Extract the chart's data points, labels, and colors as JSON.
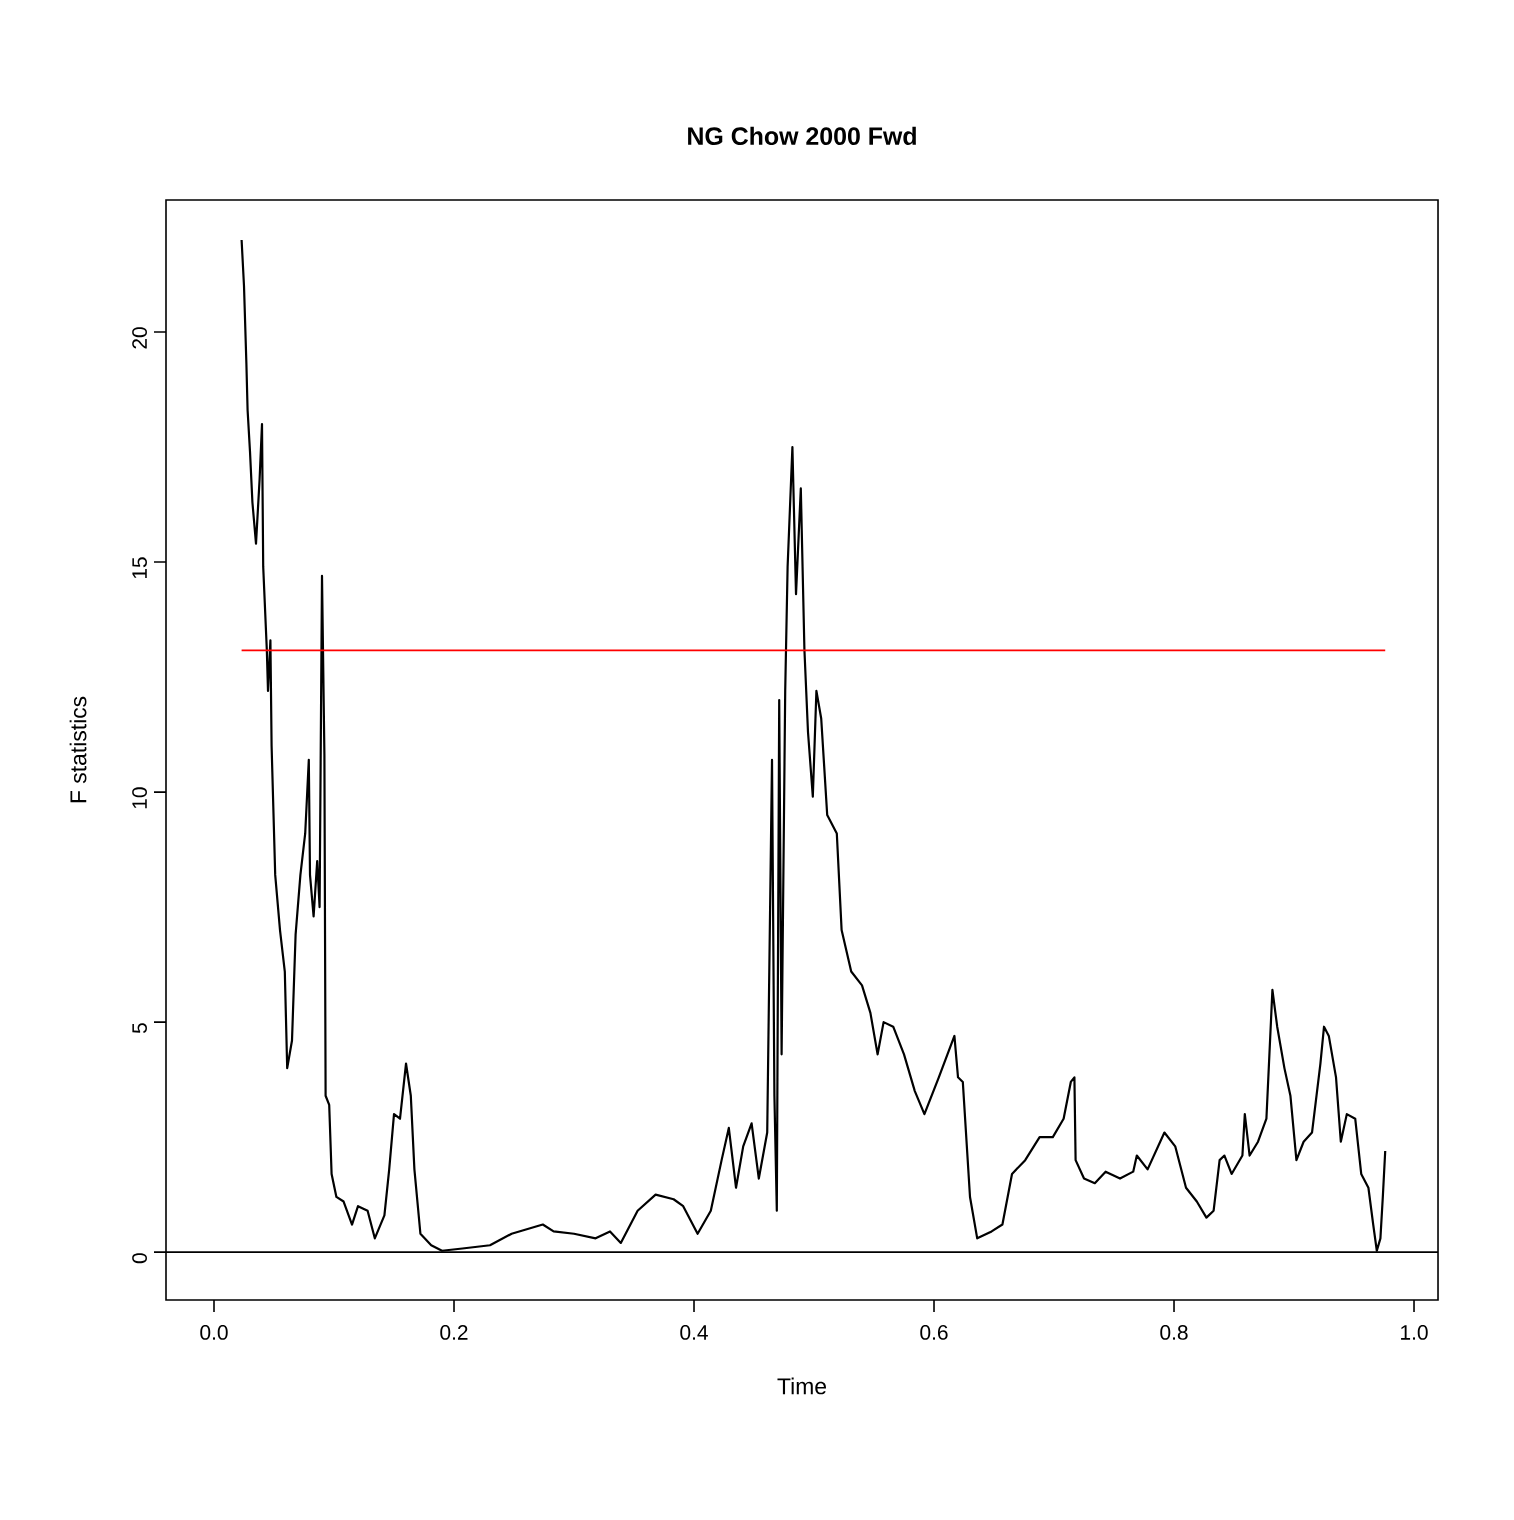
{
  "chart_data": {
    "type": "line",
    "title": "NG Chow 2000 Fwd",
    "xlabel": "Time",
    "ylabel": "F statistics",
    "xlim": [
      -0.04,
      1.02
    ],
    "ylim": [
      -1.04,
      22.87
    ],
    "xticks": [
      {
        "value": 0,
        "label": "0.0"
      },
      0.2,
      0.4,
      0.6,
      0.8,
      {
        "value": 1,
        "label": "1.0"
      }
    ],
    "yticks": [
      0,
      5,
      10,
      15,
      20
    ],
    "series": [
      {
        "color": "#000000",
        "x": [
          0.023,
          0.025,
          0.027,
          0.028,
          0.03,
          0.032,
          0.035,
          0.038,
          0.04,
          0.041,
          0.044,
          0.045,
          0.047,
          0.048,
          0.051,
          0.055,
          0.059,
          0.061,
          0.065,
          0.068,
          0.072,
          0.076,
          0.079,
          0.08,
          0.083,
          0.086,
          0.088,
          0.09,
          0.092,
          0.093,
          0.096,
          0.098,
          0.102,
          0.108,
          0.115,
          0.12,
          0.128,
          0.134,
          0.142,
          0.146,
          0.15,
          0.155,
          0.16,
          0.164,
          0.167,
          0.172,
          0.181,
          0.19,
          0.207,
          0.23,
          0.248,
          0.274,
          0.283,
          0.3,
          0.318,
          0.33,
          0.339,
          0.353,
          0.368,
          0.383,
          0.391,
          0.403,
          0.414,
          0.423,
          0.429,
          0.435,
          0.441,
          0.448,
          0.454,
          0.461,
          0.465,
          0.467,
          0.469,
          0.471,
          0.473,
          0.476,
          0.478,
          0.482,
          0.485,
          0.489,
          0.492,
          0.495,
          0.499,
          0.502,
          0.506,
          0.511,
          0.519,
          0.523,
          0.531,
          0.54,
          0.547,
          0.553,
          0.558,
          0.566,
          0.575,
          0.584,
          0.592,
          0.604,
          0.617,
          0.62,
          0.624,
          0.63,
          0.636,
          0.648,
          0.657,
          0.665,
          0.676,
          0.688,
          0.699,
          0.708,
          0.714,
          0.717,
          0.718,
          0.725,
          0.734,
          0.743,
          0.755,
          0.766,
          0.769,
          0.778,
          0.792,
          0.801,
          0.81,
          0.819,
          0.827,
          0.833,
          0.838,
          0.842,
          0.848,
          0.857,
          0.859,
          0.863,
          0.87,
          0.877,
          0.882,
          0.886,
          0.892,
          0.897,
          0.902,
          0.908,
          0.915,
          0.922,
          0.925,
          0.929,
          0.935,
          0.939,
          0.944,
          0.951,
          0.956,
          0.962,
          0.966,
          0.969,
          0.972,
          0.974,
          0.976
        ],
        "values": [
          22.0,
          21.0,
          19.3,
          18.3,
          17.4,
          16.3,
          15.4,
          16.8,
          18.0,
          14.9,
          13.1,
          12.2,
          13.3,
          11.0,
          8.2,
          7.0,
          6.1,
          4.0,
          4.6,
          6.9,
          8.2,
          9.1,
          10.7,
          8.2,
          7.3,
          8.5,
          7.5,
          14.7,
          10.8,
          3.4,
          3.2,
          1.7,
          1.2,
          1.1,
          0.6,
          1.0,
          0.9,
          0.3,
          0.8,
          1.8,
          3.0,
          2.9,
          4.1,
          3.4,
          1.8,
          0.4,
          0.15,
          0.03,
          0.08,
          0.15,
          0.4,
          0.6,
          0.45,
          0.4,
          0.3,
          0.45,
          0.2,
          0.9,
          1.25,
          1.15,
          1.0,
          0.4,
          0.9,
          2.0,
          2.7,
          1.4,
          2.3,
          2.8,
          1.6,
          2.6,
          10.7,
          3.4,
          0.9,
          12.0,
          4.3,
          12.2,
          14.9,
          17.5,
          14.3,
          16.6,
          13.1,
          11.3,
          9.9,
          12.2,
          11.6,
          9.5,
          9.1,
          7.0,
          6.1,
          5.8,
          5.2,
          4.3,
          5.0,
          4.9,
          4.3,
          3.5,
          3.0,
          3.8,
          4.7,
          3.8,
          3.7,
          1.2,
          0.3,
          0.45,
          0.6,
          1.7,
          2.0,
          2.5,
          2.5,
          2.9,
          3.7,
          3.8,
          2.0,
          1.6,
          1.5,
          1.75,
          1.6,
          1.75,
          2.1,
          1.8,
          2.6,
          2.3,
          1.4,
          1.1,
          0.75,
          0.9,
          2.0,
          2.1,
          1.7,
          2.1,
          3.0,
          2.1,
          2.4,
          2.9,
          5.7,
          4.9,
          4.0,
          3.4,
          2.0,
          2.4,
          2.6,
          4.1,
          4.9,
          4.7,
          3.8,
          2.4,
          3.0,
          2.9,
          1.7,
          1.4,
          0.6,
          0.03,
          0.3,
          1.2,
          2.2
        ]
      }
    ],
    "ref_lines": [
      {
        "axis": "y",
        "value": 13.08,
        "color": "#ff0000"
      },
      {
        "axis": "y",
        "value": 0,
        "color": "#000000"
      }
    ]
  }
}
